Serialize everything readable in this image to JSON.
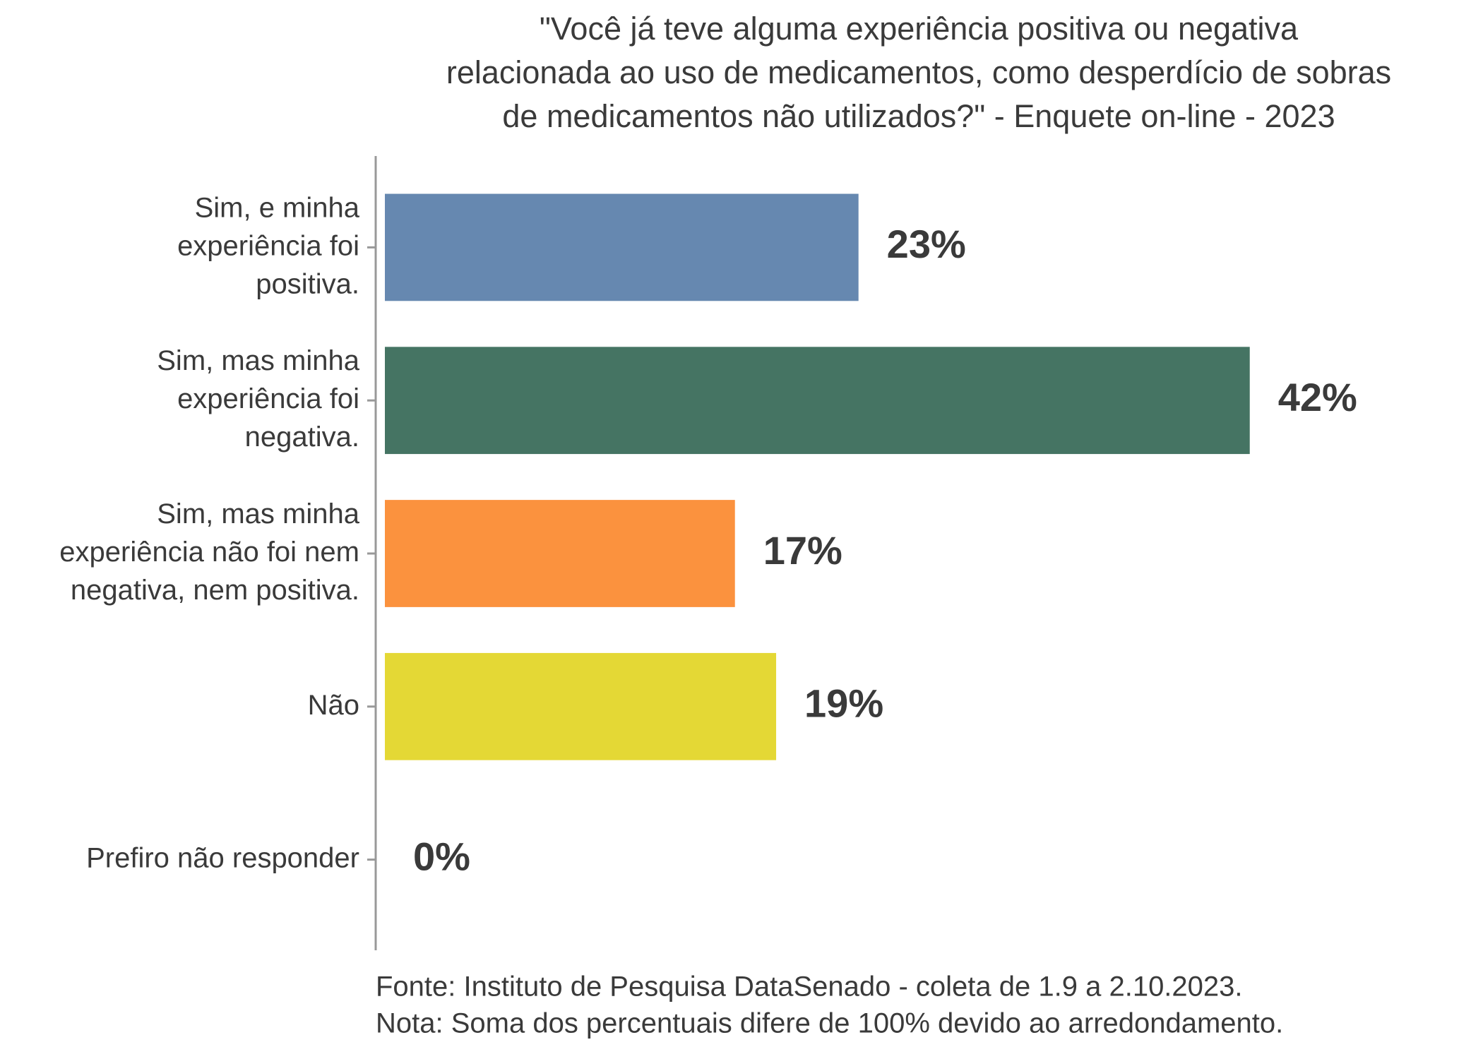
{
  "chart_data": {
    "type": "bar",
    "title": "\"Você já teve alguma experiência positiva ou negativa\nrelacionada ao uso de medicamentos, como desperdício de sobras\nde medicamentos não utilizados?\" - Enquete on-line - 2023",
    "categories": [
      "Sim, e minha\nexperiência foi\npositiva.",
      "Sim, mas minha\nexperiência foi\nnegativa.",
      "Sim, mas minha\nexperiência não foi nem\nnegativa, nem positiva.",
      "Não",
      "Prefiro não responder"
    ],
    "values": [
      23,
      42,
      17,
      19,
      0
    ],
    "value_labels": [
      "23%",
      "42%",
      "17%",
      "19%",
      "0%"
    ],
    "colors": [
      "#6688b0",
      "#457463",
      "#fb923e",
      "#e4d835",
      "#cccccc"
    ],
    "xlim": [
      0,
      50
    ],
    "source": "Fonte: Instituto de Pesquisa DataSenado - coleta de 1.9 a 2.10.2023.",
    "note": "Nota: Soma dos percentuais difere de 100% devido ao arredondamento."
  }
}
